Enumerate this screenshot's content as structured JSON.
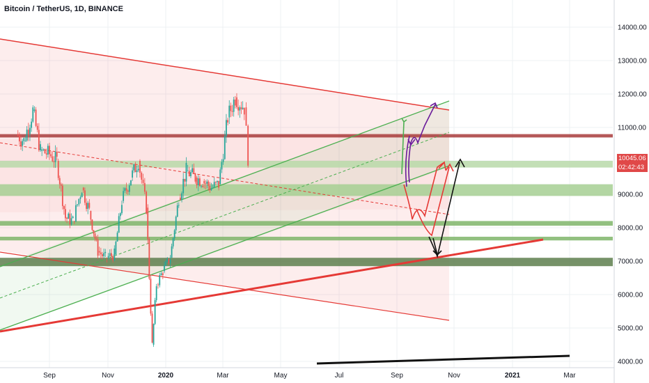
{
  "title": "Bitcoin / TetherUS, 1D, BINANCE",
  "price_tags": {
    "current": "10045.06",
    "timer": "02:42:43"
  },
  "chart_data": {
    "type": "line",
    "title": "Bitcoin / TetherUS, 1D, BINANCE",
    "xlabel": "",
    "ylabel": "",
    "ylim": [
      4000,
      14000
    ],
    "grid": true,
    "y_ticks": [
      "14000.00",
      "13000.00",
      "12000.00",
      "11000.00",
      "10000.00",
      "9000.00",
      "8000.00",
      "7000.00",
      "6000.00",
      "5000.00",
      "4000.00"
    ],
    "x_ticks": [
      "Sep",
      "Nov",
      "2020",
      "Mar",
      "May",
      "Jul",
      "Sep",
      "Nov",
      "2021",
      "Mar"
    ],
    "x": [
      "2019-07-01",
      "2019-07-15",
      "2019-08-01",
      "2019-08-15",
      "2019-09-01",
      "2019-09-15",
      "2019-10-01",
      "2019-10-15",
      "2019-11-01",
      "2019-11-15",
      "2019-12-01",
      "2019-12-15",
      "2020-01-01",
      "2020-01-15",
      "2020-02-01",
      "2020-02-15",
      "2020-03-01",
      "2020-03-12",
      "2020-03-20",
      "2020-04-01",
      "2020-04-15",
      "2020-05-01",
      "2020-05-15",
      "2020-06-01",
      "2020-06-15",
      "2020-07-01",
      "2020-07-15",
      "2020-08-01",
      "2020-08-15",
      "2020-09-01",
      "2020-09-08"
    ],
    "series": [
      {
        "values": [
          10800,
          10600,
          11500,
          10300,
          10200,
          10000,
          8300,
          8200,
          9200,
          8500,
          7300,
          7100,
          7200,
          8800,
          9500,
          10000,
          8600,
          4500,
          6300,
          6700,
          7100,
          8900,
          9700,
          9500,
          9400,
          9200,
          9300,
          11300,
          11900,
          11600,
          10100
        ]
      }
    ],
    "horizontal_zones": [
      {
        "low": 10700,
        "high": 10800,
        "color": "#a83c3c"
      },
      {
        "low": 9800,
        "high": 10000,
        "color": "#b9d9a9"
      },
      {
        "low": 8950,
        "high": 9300,
        "color": "#a6cf93"
      },
      {
        "low": 8060,
        "high": 8200,
        "color": "#7fb56a"
      },
      {
        "low": 7620,
        "high": 7730,
        "color": "#7fb56a"
      },
      {
        "low": 6850,
        "high": 7100,
        "color": "#5e7f4e"
      }
    ],
    "colors": {
      "up": "#26a69a",
      "down": "#ef5350",
      "channel_red": "#e53935",
      "channel_green": "#4caf50",
      "price_tag": "#e04848"
    }
  }
}
